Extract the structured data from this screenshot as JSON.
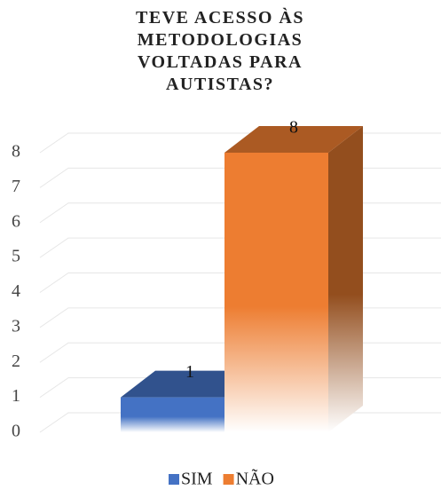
{
  "chart_data": {
    "type": "bar3d",
    "title": "TEVE ACESSO ÀS METODOLOGIAS VOLTADAS PARA AUTISTAS?",
    "categories": [
      null
    ],
    "series": [
      {
        "name": "SIM",
        "color": "#4472c4",
        "values": [
          1
        ]
      },
      {
        "name": "NÃO",
        "color": "#ed7d31",
        "values": [
          8
        ]
      }
    ],
    "ylim": [
      0,
      8
    ],
    "yticks": [
      0,
      1,
      2,
      3,
      4,
      5,
      6,
      7,
      8
    ],
    "grid": true,
    "legend": "bottom"
  }
}
